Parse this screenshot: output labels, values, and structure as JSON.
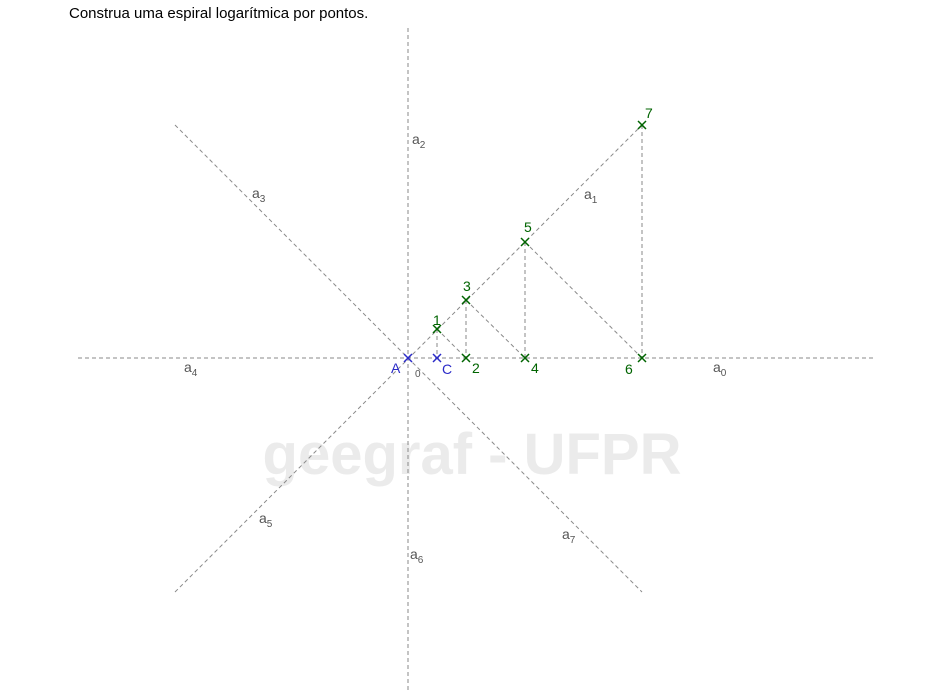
{
  "title": "Construa uma espiral logarítmica por pontos.",
  "watermark": "geegraf - UFPR",
  "colors": {
    "axis": "#8a8a8a",
    "green": "#006400",
    "blue": "#2a2ac8",
    "watermark": "#ebebeb"
  },
  "axes": [
    {
      "name": "a",
      "sub": "0"
    },
    {
      "name": "a",
      "sub": "1"
    },
    {
      "name": "a",
      "sub": "2"
    },
    {
      "name": "a",
      "sub": "3"
    },
    {
      "name": "a",
      "sub": "4"
    },
    {
      "name": "a",
      "sub": "5"
    },
    {
      "name": "a",
      "sub": "6"
    },
    {
      "name": "a",
      "sub": "7"
    }
  ],
  "center": {
    "label": "A"
  },
  "angle_label": {
    "name": "",
    "sub": "0"
  },
  "point_c": {
    "label": "C"
  },
  "points": [
    "1",
    "2",
    "3",
    "4",
    "5",
    "6",
    "7"
  ]
}
